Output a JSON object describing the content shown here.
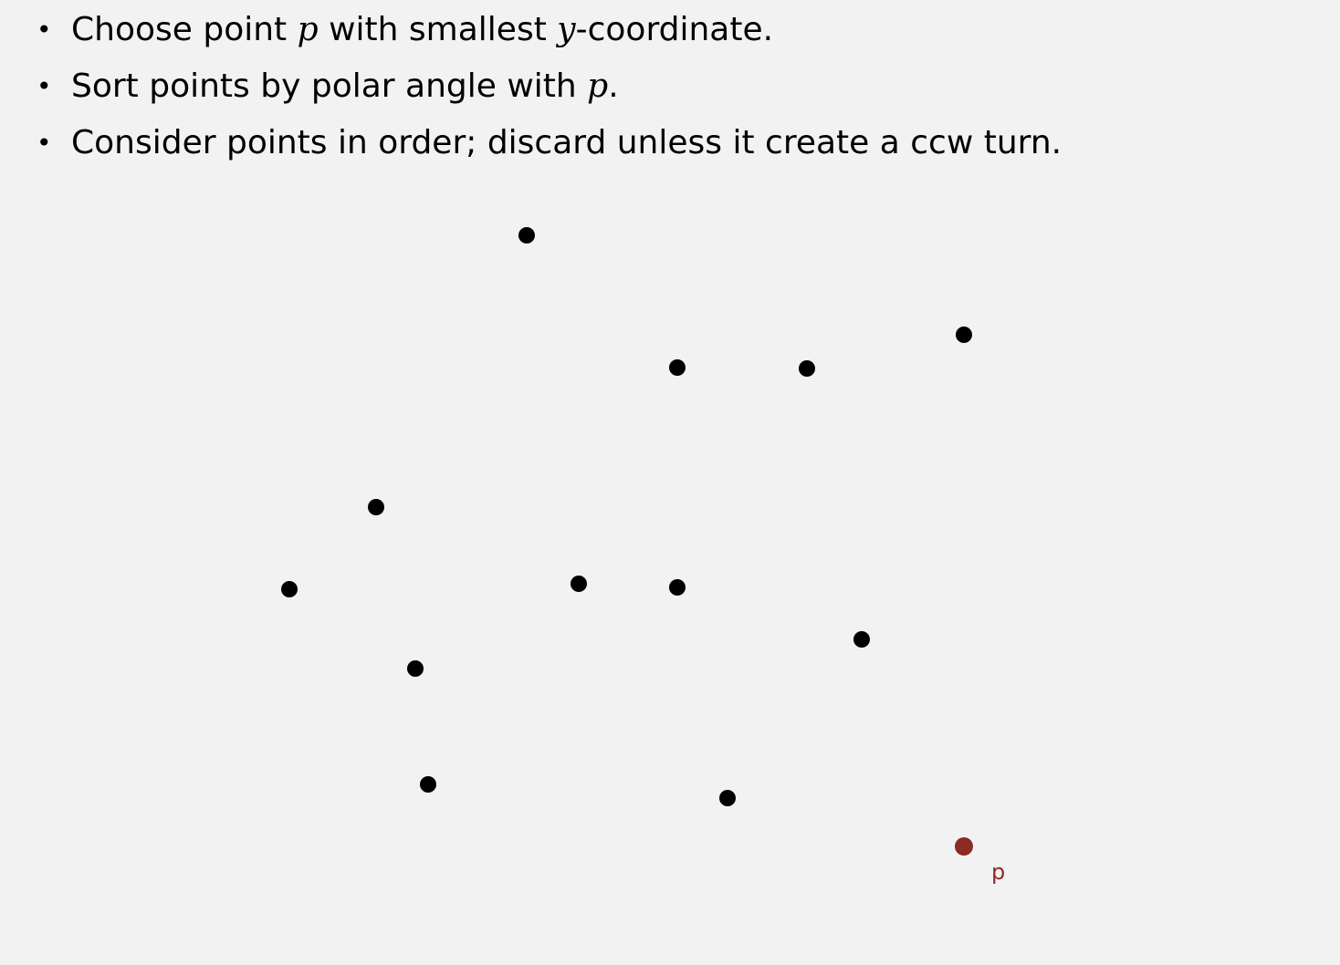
{
  "bullets": {
    "b1": {
      "t1": "Choose point ",
      "m1": "p",
      "t2": " with smallest ",
      "m2": "y",
      "t3": "-coordinate."
    },
    "b2": {
      "t1": "Sort points by polar angle with ",
      "m1": "p",
      "t2": "."
    },
    "b3": {
      "t1": "Consider points in order; discard unless it create a ccw turn."
    }
  },
  "diagram": {
    "point_label": "p",
    "point_color": "#000000",
    "highlight_color": "#8b2b25"
  }
}
